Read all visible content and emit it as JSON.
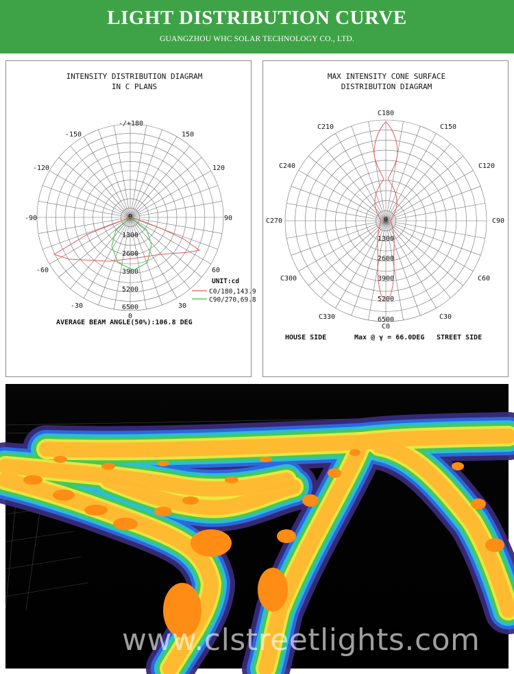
{
  "header": {
    "title": "LIGHT DISTRIBUTION CURVE",
    "subtitle": "GUANGZHOU WHC SOLAR TECHNOLOGY CO., LTD."
  },
  "left_diagram": {
    "title_line1": "INTENSITY DISTRIBUTION DIAGRAM",
    "title_line2": "IN C PLANS",
    "angle_labels": {
      "a180": "-/+180",
      "a150": "150",
      "am150": "-150",
      "a120": "120",
      "am120": "-120",
      "a90": "90",
      "am90": "-90",
      "a60": "60",
      "am60": "-60",
      "a30": "30",
      "am30": "-30",
      "a0": "0"
    },
    "radial_labels": [
      "0",
      "1300",
      "2600",
      "3900",
      "5200",
      "6500"
    ],
    "unit_label": "UNIT:cd",
    "legend": [
      {
        "label": "C0/180,143.9",
        "color": "#e05a5a"
      },
      {
        "label": "C90/270,69.8",
        "color": "#35c23a"
      }
    ],
    "footer": "AVERAGE BEAM ANGLE(50%):106.8 DEG"
  },
  "right_diagram": {
    "title_line1": "MAX INTENSITY CONE SURFACE",
    "title_line2": "DISTRIBUTION DIAGRAM",
    "angle_labels": {
      "c180": "C180",
      "c150": "C150",
      "c210": "C210",
      "c120": "C120",
      "c240": "C240",
      "c90": "C90",
      "c270": "C270",
      "c60": "C60",
      "c300": "C300",
      "c30": "C30",
      "c330": "C330",
      "c0": "C0"
    },
    "radial_labels": [
      "0",
      "1300",
      "2600",
      "3900",
      "5200",
      "6500"
    ],
    "footer_left": "HOUSE SIDE",
    "footer_mid": "Max @ γ = 66.0DEG",
    "footer_right": "STREET SIDE",
    "curve_color": "#e05a5a"
  },
  "render": {
    "watermark": "www.clstreetlights.com"
  }
}
